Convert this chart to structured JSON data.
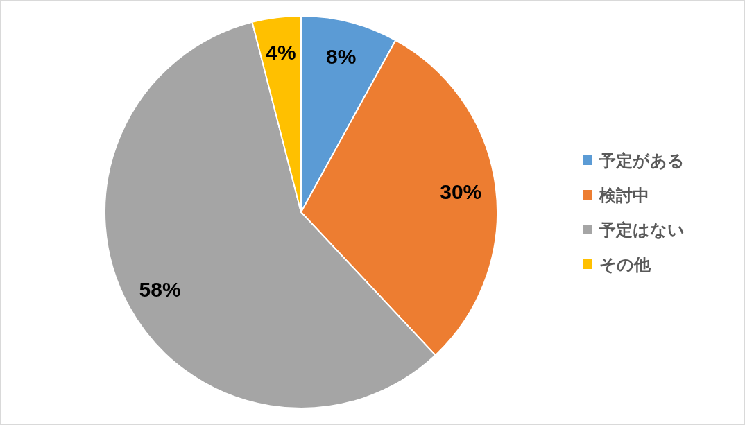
{
  "chart_data": {
    "type": "pie",
    "categories": [
      "予定がある",
      "検討中",
      "予定はない",
      "その他"
    ],
    "values": [
      8,
      30,
      58,
      4
    ],
    "colors": [
      "#5b9bd5",
      "#ed7d31",
      "#a5a5a5",
      "#ffc000"
    ],
    "value_labels": [
      "8%",
      "30%",
      "58%",
      "4%"
    ],
    "legend": "right"
  }
}
